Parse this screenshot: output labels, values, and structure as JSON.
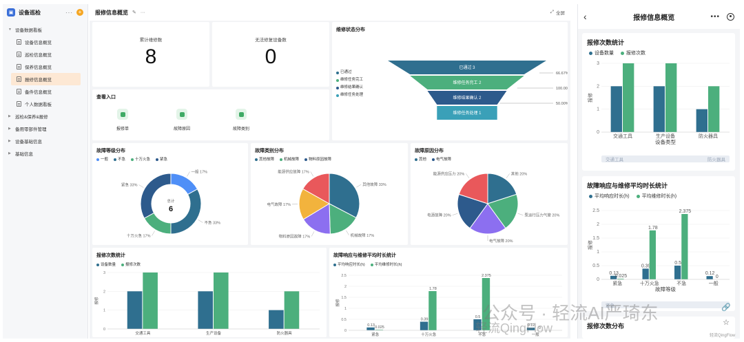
{
  "sidebar": {
    "app_title": "设备巡检",
    "more": "···",
    "add": "+",
    "groups": [
      {
        "label": "设备数据看板",
        "expanded": true
      },
      {
        "label": "巡检&保养&报修",
        "expanded": false
      },
      {
        "label": "备用零部件管理",
        "expanded": false
      },
      {
        "label": "设备基础信息",
        "expanded": false
      },
      {
        "label": "基础信息",
        "expanded": false
      }
    ],
    "items": [
      {
        "label": "设备信息概览"
      },
      {
        "label": "巡检信息概览"
      },
      {
        "label": "保养信息概览"
      },
      {
        "label": "报修信息概览",
        "active": true
      },
      {
        "label": "备件信息概览"
      },
      {
        "label": "个人数据看板"
      }
    ]
  },
  "main": {
    "title": "报修信息概览",
    "fullscreen": "全屏",
    "kpi": [
      {
        "label": "累计维修数",
        "value": "8"
      },
      {
        "label": "无法修复设备数",
        "value": "0"
      }
    ],
    "entry": {
      "title": "查看入口",
      "items": [
        "报修单",
        "故障原因",
        "故障类别"
      ]
    }
  },
  "colors": {
    "blue_dark": "#2f6f8f",
    "green": "#4caf7d",
    "teal": "#3aa0b8",
    "navy": "#2d5a8c",
    "accent": "#f5a623"
  },
  "chart_data": [
    {
      "id": "funnel",
      "type": "funnel",
      "title": "维修状态分布",
      "legend": [
        "已通过",
        "维修任务完工",
        "维修结果确认",
        "维修任务处理"
      ],
      "stages": [
        {
          "label": "已通过 3",
          "value": 3,
          "rate": "66.67%"
        },
        {
          "label": "维修任务完工 2",
          "value": 2,
          "rate": "100.00%"
        },
        {
          "label": "维修结果确认 2",
          "value": 2,
          "rate": "50.00%"
        },
        {
          "label": "维修任务处理 1",
          "value": 1,
          "rate": ""
        }
      ]
    },
    {
      "id": "level",
      "type": "pie",
      "title": "故障等级分布",
      "legend": [
        "一般",
        "不急",
        "十万火急",
        "紧急"
      ],
      "center_label": "总计",
      "center_value": "6",
      "slices": [
        {
          "name": "一般",
          "value": 17,
          "label": "一般 17%"
        },
        {
          "name": "不急",
          "value": 33,
          "label": "不急 33%"
        },
        {
          "name": "十万火急",
          "value": 17,
          "label": "十万火急 17%"
        },
        {
          "name": "紧急",
          "value": 33,
          "label": "紧急 33%"
        }
      ]
    },
    {
      "id": "category",
      "type": "pie",
      "title": "故障类别分布",
      "legend": [
        "其他故障",
        "机械故障",
        "物料原因故障"
      ],
      "slices": [
        {
          "name": "其他故障",
          "value": 33,
          "label": "其他故障 33%"
        },
        {
          "name": "机械故障",
          "value": 17,
          "label": "机械故障 17%"
        },
        {
          "name": "物料原因故障",
          "value": 17,
          "label": "物料原因故障 17%"
        },
        {
          "name": "电气故障",
          "value": 17,
          "label": "电气故障 17%"
        },
        {
          "name": "能源供应故障",
          "value": 17,
          "label": "能源供应故障 17%"
        }
      ]
    },
    {
      "id": "reason",
      "type": "pie",
      "title": "故障原因分布",
      "legend": [
        "其他",
        "电气故障"
      ],
      "slices": [
        {
          "name": "其他",
          "value": 20,
          "label": "其他 20%"
        },
        {
          "name": "泵运行压力气管",
          "value": 20,
          "label": "泵运行压力气管 20%"
        },
        {
          "name": "电气故障",
          "value": 20,
          "label": "电气故障 20%"
        },
        {
          "name": "电源故障",
          "value": 20,
          "label": "电源故障 20%"
        },
        {
          "name": "能源供应压力",
          "value": 20,
          "label": "能源供应压力 20%"
        }
      ]
    },
    {
      "id": "repair_count",
      "type": "bar",
      "title": "报修次数统计",
      "categories": [
        "交通工具",
        "生产设备",
        "防火器具"
      ],
      "series": [
        {
          "name": "设备数量",
          "values": [
            2,
            2,
            1
          ]
        },
        {
          "name": "报修次数",
          "values": [
            3,
            3,
            2
          ]
        }
      ],
      "ylabel": "报修",
      "xlabel": "设备类型",
      "ylim": [
        0,
        3
      ]
    },
    {
      "id": "response",
      "type": "bar",
      "title": "故障响应与维修平均时长统计",
      "categories": [
        "紧急",
        "十万火急",
        "不急",
        "一般"
      ],
      "series": [
        {
          "name": "平均响应时长(h)",
          "values": [
            0.13,
            0.39,
            0.5,
            0.12
          ]
        },
        {
          "name": "平均维修时长(h)",
          "values": [
            0.025,
            1.78,
            2.375,
            0
          ]
        }
      ],
      "ylabel": "报修",
      "xlabel": "故障等级",
      "ylim": [
        0,
        2.5
      ]
    }
  ],
  "rpanel": {
    "title": "报修信息概览",
    "card1_title": "报修次数统计",
    "card2_title": "故障响应与维修平均时长统计",
    "card3_title": "报修次数分布",
    "scroll1": [
      "交通工具",
      "防火器具"
    ],
    "scroll2_left": "紧急",
    "y_axis_label": "报修"
  },
  "watermark": "公众号 · 轻流AI严琦东",
  "watermark_sub": "轻流QingFlow",
  "watermark_small": "轻流QingFlow"
}
